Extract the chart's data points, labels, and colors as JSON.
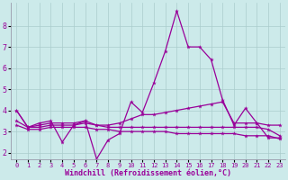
{
  "xlabel": "Windchill (Refroidissement éolien,°C)",
  "background_color": "#cceaea",
  "grid_color": "#aacccc",
  "line_color": "#990099",
  "x_ticks": [
    0,
    1,
    2,
    3,
    4,
    5,
    6,
    7,
    8,
    9,
    10,
    11,
    12,
    13,
    14,
    15,
    16,
    17,
    18,
    19,
    20,
    21,
    22,
    23
  ],
  "y_ticks": [
    2,
    3,
    4,
    5,
    6,
    7,
    8
  ],
  "ylim": [
    1.7,
    9.1
  ],
  "xlim": [
    -0.5,
    23.5
  ],
  "series1": [
    4.0,
    3.2,
    3.4,
    3.5,
    2.5,
    3.3,
    3.5,
    1.7,
    2.6,
    2.9,
    4.4,
    3.9,
    5.3,
    6.8,
    8.7,
    7.0,
    7.0,
    6.4,
    4.5,
    3.3,
    4.1,
    3.4,
    2.7,
    2.7
  ],
  "series2": [
    4.0,
    3.2,
    3.3,
    3.4,
    3.4,
    3.4,
    3.5,
    3.3,
    3.3,
    3.4,
    3.6,
    3.8,
    3.8,
    3.9,
    4.0,
    4.1,
    4.2,
    4.3,
    4.4,
    3.4,
    3.4,
    3.4,
    3.3,
    3.3
  ],
  "series3": [
    3.5,
    3.2,
    3.2,
    3.3,
    3.3,
    3.3,
    3.4,
    3.3,
    3.2,
    3.2,
    3.2,
    3.2,
    3.2,
    3.2,
    3.2,
    3.2,
    3.2,
    3.2,
    3.2,
    3.2,
    3.2,
    3.2,
    3.1,
    2.8
  ],
  "series4": [
    3.3,
    3.1,
    3.1,
    3.2,
    3.2,
    3.2,
    3.2,
    3.1,
    3.1,
    3.0,
    3.0,
    3.0,
    3.0,
    3.0,
    2.9,
    2.9,
    2.9,
    2.9,
    2.9,
    2.9,
    2.8,
    2.8,
    2.8,
    2.65
  ]
}
